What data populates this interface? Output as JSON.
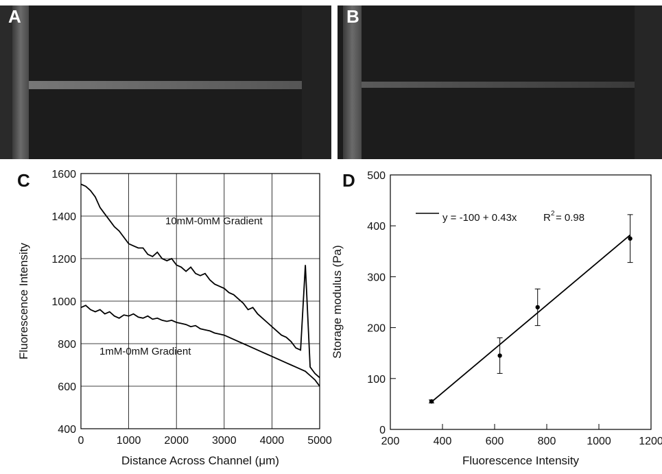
{
  "images": [
    {
      "label": "A"
    },
    {
      "label": "B"
    }
  ],
  "chart_data": [
    {
      "type": "line",
      "panel_label": "C",
      "x_label": "Distance Across Channel (μm)",
      "y_label": "Fluorescence Intensity",
      "xlim": [
        0,
        5000
      ],
      "xticks": [
        0,
        1000,
        2000,
        3000,
        4000,
        5000
      ],
      "ylim": [
        400,
        1600
      ],
      "yticks": [
        400,
        600,
        800,
        1000,
        1200,
        1400,
        1600
      ],
      "grid": true,
      "annotations": [
        "10mM-0mM Gradient",
        "1mM-0mM Gradient"
      ],
      "x": [
        0,
        100,
        200,
        300,
        400,
        500,
        600,
        700,
        800,
        900,
        1000,
        1100,
        1200,
        1300,
        1400,
        1500,
        1600,
        1700,
        1800,
        1900,
        2000,
        2100,
        2200,
        2300,
        2400,
        2500,
        2600,
        2700,
        2800,
        2900,
        3000,
        3100,
        3200,
        3300,
        3400,
        3500,
        3600,
        3700,
        3800,
        3900,
        4000,
        4100,
        4200,
        4300,
        4400,
        4500,
        4600,
        4700,
        4800,
        4900,
        5000
      ],
      "series": [
        {
          "name": "10mM-0mM Gradient",
          "color": "#000000",
          "values": [
            1550,
            1540,
            1520,
            1490,
            1440,
            1410,
            1380,
            1350,
            1330,
            1300,
            1270,
            1260,
            1250,
            1250,
            1220,
            1210,
            1230,
            1200,
            1190,
            1200,
            1170,
            1160,
            1140,
            1160,
            1130,
            1120,
            1130,
            1100,
            1080,
            1070,
            1060,
            1040,
            1030,
            1010,
            990,
            960,
            970,
            940,
            920,
            900,
            880,
            860,
            840,
            830,
            810,
            780,
            770,
            1170,
            690,
            660,
            640
          ]
        },
        {
          "name": "1mM-0mM Gradient",
          "color": "#000000",
          "values": [
            970,
            980,
            960,
            950,
            960,
            940,
            950,
            930,
            920,
            935,
            930,
            940,
            925,
            920,
            930,
            915,
            920,
            910,
            905,
            910,
            900,
            895,
            890,
            880,
            885,
            870,
            865,
            860,
            850,
            845,
            840,
            830,
            820,
            810,
            800,
            790,
            780,
            770,
            760,
            750,
            740,
            730,
            720,
            710,
            700,
            690,
            680,
            670,
            650,
            630,
            600
          ]
        }
      ]
    },
    {
      "type": "scatter",
      "panel_label": "D",
      "x_label": "Fluorescence Intensity",
      "y_label": "Storage modulus (Pa)",
      "xlim": [
        200,
        1200
      ],
      "xticks": [
        200,
        400,
        600,
        800,
        1000,
        1200
      ],
      "ylim": [
        0,
        500
      ],
      "yticks": [
        0,
        100,
        200,
        300,
        400,
        500
      ],
      "grid": false,
      "r2": {
        "label": "R",
        "sup": "2",
        "text": "= 0.98"
      },
      "series": [
        {
          "name": "y = -100 + 0.43x",
          "kind": "line",
          "color": "#000000",
          "x": [
            358,
            1120
          ],
          "values": [
            54,
            382
          ]
        },
        {
          "kind": "points",
          "color": "#000000",
          "x": [
            358,
            620,
            765,
            1120
          ],
          "values": [
            55,
            145,
            240,
            375
          ],
          "errors": [
            3,
            35,
            36,
            47
          ]
        }
      ]
    }
  ]
}
